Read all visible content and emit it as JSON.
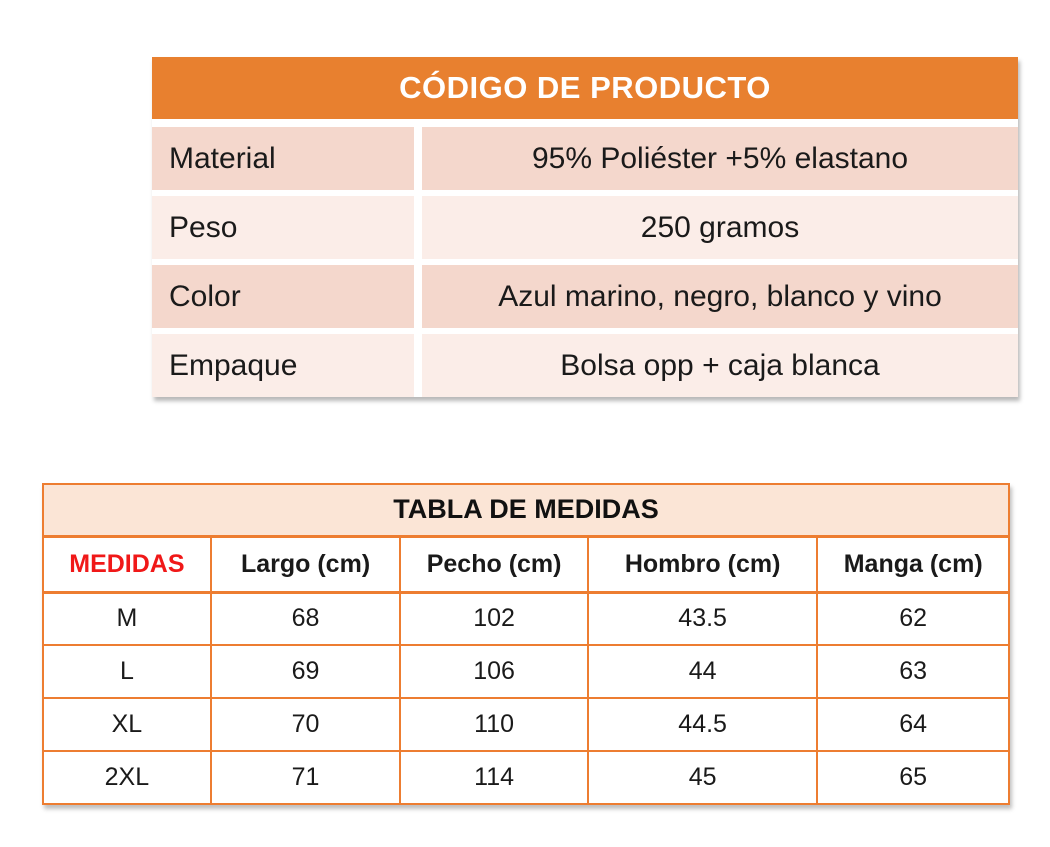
{
  "colors": {
    "header_orange": "#E8802F",
    "row_dark_pink": "#F4D7CC",
    "row_light_pink": "#FBEDE8",
    "table_border_orange": "#ED7D31",
    "title_row_peach": "#FBE5D6",
    "medidas_red": "#F01818",
    "header_text_white": "#FFFFFF",
    "body_text": "#1A1A1A"
  },
  "product_table": {
    "title": "CÓDIGO DE PRODUCTO",
    "rows": [
      {
        "label": "Material",
        "value": "95% Poliéster +5% elastano"
      },
      {
        "label": "Peso",
        "value": "250 gramos"
      },
      {
        "label": "Color",
        "value": "Azul marino, negro, blanco y vino"
      },
      {
        "label": "Empaque",
        "value": "Bolsa opp + caja blanca"
      }
    ]
  },
  "size_table": {
    "title": "TABLA DE MEDIDAS",
    "columns": [
      "MEDIDAS",
      "Largo (cm)",
      "Pecho (cm)",
      "Hombro (cm)",
      "Manga (cm)"
    ],
    "rows": [
      [
        "M",
        "68",
        "102",
        "43.5",
        "62"
      ],
      [
        "L",
        "69",
        "106",
        "44",
        "63"
      ],
      [
        "XL",
        "70",
        "110",
        "44.5",
        "64"
      ],
      [
        "2XL",
        "71",
        "114",
        "45",
        "65"
      ]
    ]
  }
}
